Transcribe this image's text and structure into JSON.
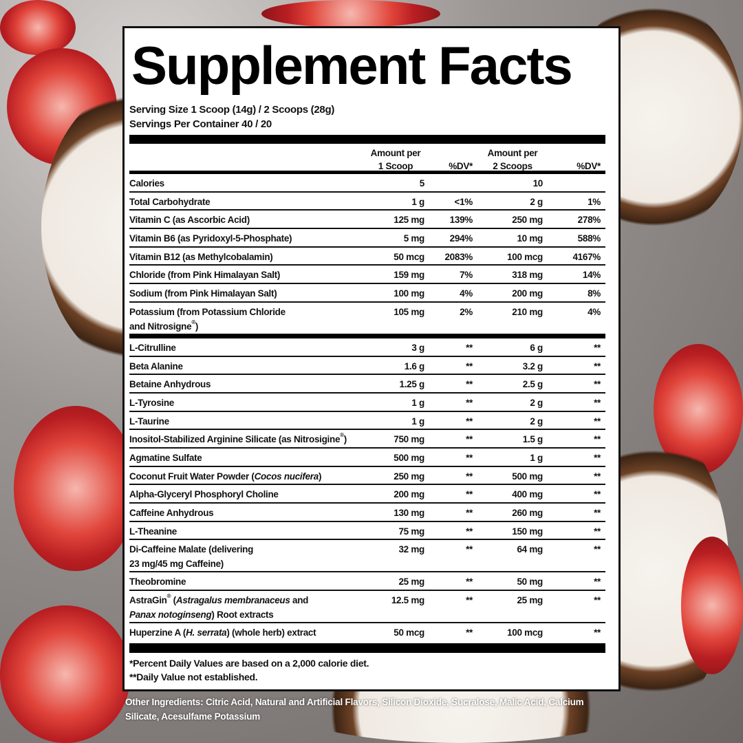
{
  "title": "Supplement Facts",
  "serving_size": "Serving Size 1 Scoop (14g) / 2 Scoops (28g)",
  "servings_per_container": "Servings Per Container 40 / 20",
  "headers": {
    "amount1_l1": "Amount per",
    "amount1_l2": "1 Scoop",
    "dv1": "%DV*",
    "amount2_l1": "Amount per",
    "amount2_l2": "2 Scoops",
    "dv2": "%DV*"
  },
  "section1": [
    {
      "name": [
        {
          "t": "Calories"
        }
      ],
      "a1": "5",
      "d1": "",
      "a2": "10",
      "d2": ""
    },
    {
      "name": [
        {
          "t": "Total Carbohydrate"
        }
      ],
      "a1": "1 g",
      "d1": "<1%",
      "a2": "2 g",
      "d2": "1%"
    },
    {
      "name": [
        {
          "t": "Vitamin C (as Ascorbic Acid)"
        }
      ],
      "a1": "125 mg",
      "d1": "139%",
      "a2": "250 mg",
      "d2": "278%"
    },
    {
      "name": [
        {
          "t": "Vitamin B6 (as Pyridoxyl-5-Phosphate)"
        }
      ],
      "a1": "5 mg",
      "d1": "294%",
      "a2": "10 mg",
      "d2": "588%"
    },
    {
      "name": [
        {
          "t": "Vitamin B12 (as Methylcobalamin)"
        }
      ],
      "a1": "50 mcg",
      "d1": "2083%",
      "a2": "100 mcg",
      "d2": "4167%"
    },
    {
      "name": [
        {
          "t": "Chloride (from Pink Himalayan Salt)"
        }
      ],
      "a1": "159 mg",
      "d1": "7%",
      "a2": "318 mg",
      "d2": "14%"
    },
    {
      "name": [
        {
          "t": "Sodium (from Pink Himalayan Salt)"
        }
      ],
      "a1": "100 mg",
      "d1": "4%",
      "a2": "200 mg",
      "d2": "8%"
    },
    {
      "tall": true,
      "name": [
        {
          "t": "Potassium (from Potassium Chloride"
        },
        {
          "br": true
        },
        {
          "t": "and Nitrosigne"
        },
        {
          "t": "®",
          "sup": true
        },
        {
          "t": ")"
        }
      ],
      "a1": "105 mg",
      "d1": "2%",
      "a2": "210 mg",
      "d2": "4%"
    }
  ],
  "section2": [
    {
      "name": [
        {
          "t": "L-Citrulline"
        }
      ],
      "a1": "3 g",
      "d1": "**",
      "a2": "6 g",
      "d2": "**"
    },
    {
      "name": [
        {
          "t": "Beta Alanine"
        }
      ],
      "a1": "1.6 g",
      "d1": "**",
      "a2": "3.2 g",
      "d2": "**"
    },
    {
      "name": [
        {
          "t": "Betaine Anhydrous"
        }
      ],
      "a1": "1.25 g",
      "d1": "**",
      "a2": "2.5 g",
      "d2": "**"
    },
    {
      "name": [
        {
          "t": "L-Tyrosine"
        }
      ],
      "a1": "1 g",
      "d1": "**",
      "a2": "2 g",
      "d2": "**"
    },
    {
      "name": [
        {
          "t": "L-Taurine"
        }
      ],
      "a1": "1 g",
      "d1": "**",
      "a2": "2 g",
      "d2": "**"
    },
    {
      "name": [
        {
          "t": "Inositol-Stabilized Arginine Silicate (as Nitrosigine"
        },
        {
          "t": "®",
          "sup": true
        },
        {
          "t": ")"
        }
      ],
      "a1": "750 mg",
      "d1": "**",
      "a2": "1.5 g",
      "d2": "**"
    },
    {
      "name": [
        {
          "t": "Agmatine Sulfate"
        }
      ],
      "a1": "500 mg",
      "d1": "**",
      "a2": "1 g",
      "d2": "**"
    },
    {
      "name": [
        {
          "t": "Coconut Fruit Water Powder ("
        },
        {
          "t": "Cocos nucifera",
          "i": true
        },
        {
          "t": ")"
        }
      ],
      "a1": "250 mg",
      "d1": "**",
      "a2": "500 mg",
      "d2": "**"
    },
    {
      "name": [
        {
          "t": "Alpha-Glyceryl Phosphoryl Choline"
        }
      ],
      "a1": "200 mg",
      "d1": "**",
      "a2": "400 mg",
      "d2": "**"
    },
    {
      "name": [
        {
          "t": "Caffeine Anhydrous"
        }
      ],
      "a1": "130 mg",
      "d1": "**",
      "a2": "260 mg",
      "d2": "**"
    },
    {
      "name": [
        {
          "t": "L-Theanine"
        }
      ],
      "a1": "75 mg",
      "d1": "**",
      "a2": "150 mg",
      "d2": "**"
    },
    {
      "tall": true,
      "name": [
        {
          "t": "Di-Caffeine Malate (delivering"
        },
        {
          "br": true
        },
        {
          "t": "23 mg/45 mg Caffeine)"
        }
      ],
      "a1": "32 mg",
      "d1": "**",
      "a2": "64 mg",
      "d2": "**"
    },
    {
      "name": [
        {
          "t": "Theobromine"
        }
      ],
      "a1": "25 mg",
      "d1": "**",
      "a2": "50 mg",
      "d2": "**"
    },
    {
      "tall": true,
      "name": [
        {
          "t": "AstraGin"
        },
        {
          "t": "®",
          "sup": true
        },
        {
          "t": " ("
        },
        {
          "t": "Astragalus membranaceus",
          "i": true
        },
        {
          "t": " and"
        },
        {
          "br": true
        },
        {
          "t": "Panax notoginseng",
          "i": true
        },
        {
          "t": ") Root extracts"
        }
      ],
      "a1": "12.5 mg",
      "d1": "**",
      "a2": "25 mg",
      "d2": "**"
    },
    {
      "last": true,
      "name": [
        {
          "t": "Huperzine A ("
        },
        {
          "t": "H. serrata",
          "i": true
        },
        {
          "t": ") (whole herb) extract"
        }
      ],
      "a1": "50 mcg",
      "d1": "**",
      "a2": "100 mcg",
      "d2": "**"
    }
  ],
  "footnotes": [
    "*Percent Daily Values are based on a 2,000 calorie diet.",
    "**Daily Value not established."
  ],
  "other_ingredients": "Other Ingredients: Citric Acid, Natural and Artificial Flavors, Silicon Dioxide, Sucralose, Malic Acid, Calcium Silicate, Acesulfame Potassium"
}
